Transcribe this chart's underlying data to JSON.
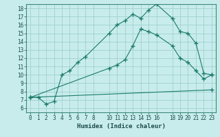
{
  "xlabel": "Humidex (Indice chaleur)",
  "bg_color": "#c8ecec",
  "grid_color": "#a0d0d0",
  "line_color": "#1a7a6a",
  "xlim": [
    -0.5,
    23.5
  ],
  "ylim": [
    5.5,
    18.5
  ],
  "xticks": [
    0,
    1,
    2,
    3,
    4,
    5,
    6,
    7,
    8,
    10,
    11,
    12,
    13,
    14,
    15,
    16,
    18,
    19,
    20,
    21,
    22,
    23
  ],
  "yticks": [
    6,
    7,
    8,
    9,
    10,
    11,
    12,
    13,
    14,
    15,
    16,
    17,
    18
  ],
  "line1_x": [
    0,
    1,
    2,
    3,
    4,
    5,
    6,
    7,
    10,
    11,
    12,
    13,
    14,
    15,
    16,
    18,
    19,
    20,
    21,
    22,
    23
  ],
  "line1_y": [
    7.3,
    7.3,
    6.5,
    6.8,
    10.0,
    10.5,
    11.5,
    12.2,
    15.0,
    16.0,
    16.5,
    17.3,
    16.8,
    17.8,
    18.5,
    16.8,
    15.2,
    15.0,
    13.8,
    10.2,
    10.0
  ],
  "line2_x": [
    0,
    10,
    11,
    12,
    13,
    14,
    15,
    16,
    18,
    19,
    20,
    21,
    22,
    23
  ],
  "line2_y": [
    7.3,
    10.8,
    11.2,
    11.8,
    13.5,
    15.5,
    15.2,
    14.8,
    13.5,
    12.0,
    11.5,
    10.5,
    9.5,
    10.0
  ],
  "line3_x": [
    0,
    23
  ],
  "line3_y": [
    7.3,
    8.2
  ]
}
